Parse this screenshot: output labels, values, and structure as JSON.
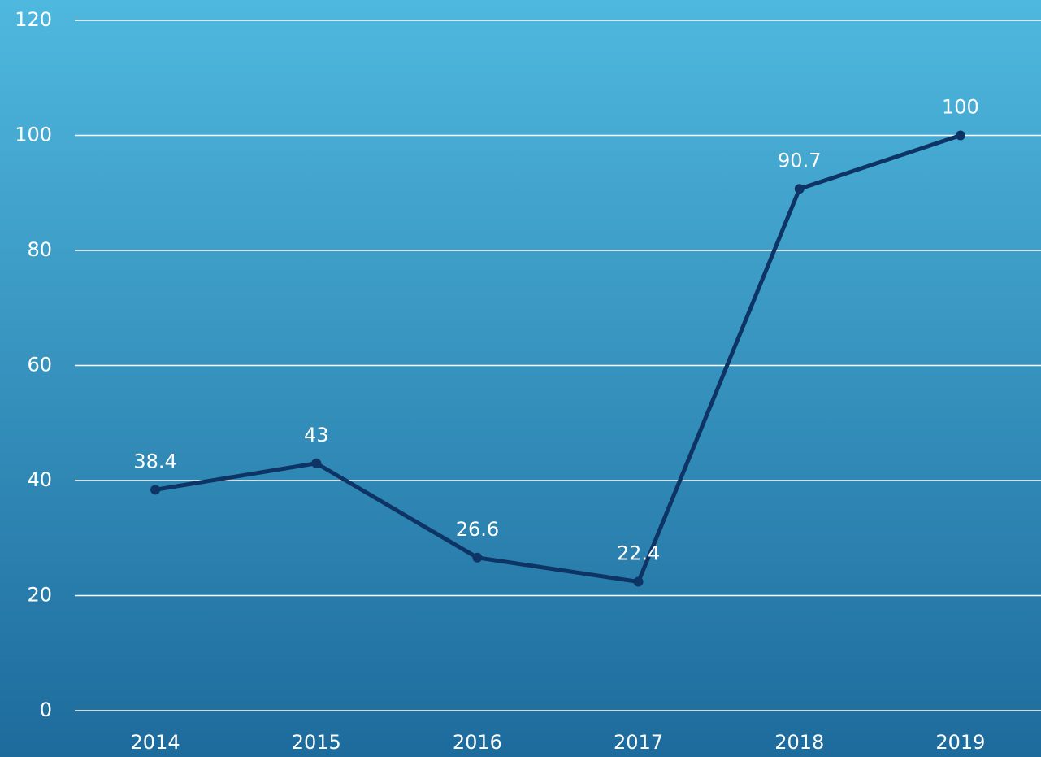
{
  "chart_data": {
    "type": "line",
    "categories": [
      "2014",
      "2015",
      "2016",
      "2017",
      "2018",
      "2019"
    ],
    "series": [
      {
        "color": "#0d3464",
        "values": [
          38.4,
          43,
          26.6,
          22.4,
          90.7,
          100
        ]
      }
    ],
    "ylim": [
      0,
      120
    ],
    "yticks": [
      0,
      20,
      40,
      60,
      80,
      100,
      120
    ],
    "grid": true
  }
}
